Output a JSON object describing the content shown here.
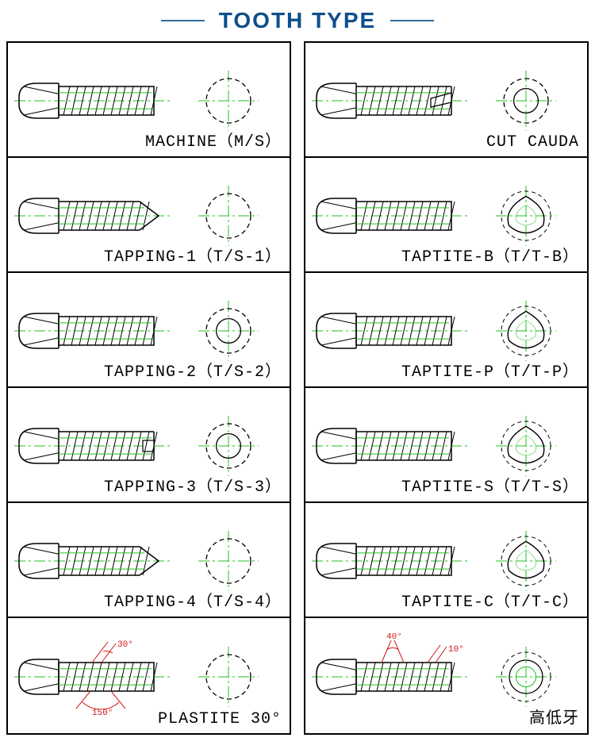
{
  "title": "TOOTH TYPE",
  "colors": {
    "title": "#0e4f8b",
    "rule": "#326b9b",
    "line": "#000000",
    "green": "#22c01f",
    "red": "#d31616",
    "background": "#ffffff"
  },
  "left": [
    {
      "label": "MACHINE（M/S）",
      "tip": "flat",
      "cross": "circle",
      "angles": false
    },
    {
      "label": "TAPPING-1（T/S-1）",
      "tip": "sharp",
      "cross": "circle",
      "angles": false
    },
    {
      "label": "TAPPING-2（T/S-2）",
      "tip": "flat",
      "cross": "ring",
      "angles": false
    },
    {
      "label": "TAPPING-3（T/S-3）",
      "tip": "slot",
      "cross": "ring",
      "angles": false
    },
    {
      "label": "TAPPING-4（T/S-4）",
      "tip": "sharp",
      "cross": "circle",
      "angles": false
    },
    {
      "label": "PLASTITE 30°",
      "tip": "flat",
      "cross": "circle",
      "angles": "plastite"
    }
  ],
  "right": [
    {
      "label": "CUT CAUDA",
      "tip": "cut",
      "cross": "ring",
      "angles": false
    },
    {
      "label": "TAPTITE-B（T/T-B）",
      "tip": "flat",
      "cross": "trilobe",
      "angles": false
    },
    {
      "label": "TAPTITE-P（T/T-P）",
      "tip": "flat",
      "cross": "trilobe",
      "angles": false
    },
    {
      "label": "TAPTITE-S（T/T-S）",
      "tip": "flat",
      "cross": "trilobe",
      "angles": false
    },
    {
      "label": "TAPTITE-C（T/T-C）",
      "tip": "flat",
      "cross": "trilobe",
      "angles": false
    },
    {
      "label": "高低牙",
      "tip": "flat",
      "cross": "hilow",
      "angles": "hilow"
    }
  ],
  "geometry": {
    "screw": {
      "head_w": 50,
      "head_h": 44,
      "body_len": 120,
      "body_h": 36
    },
    "cross_radius": 28
  }
}
